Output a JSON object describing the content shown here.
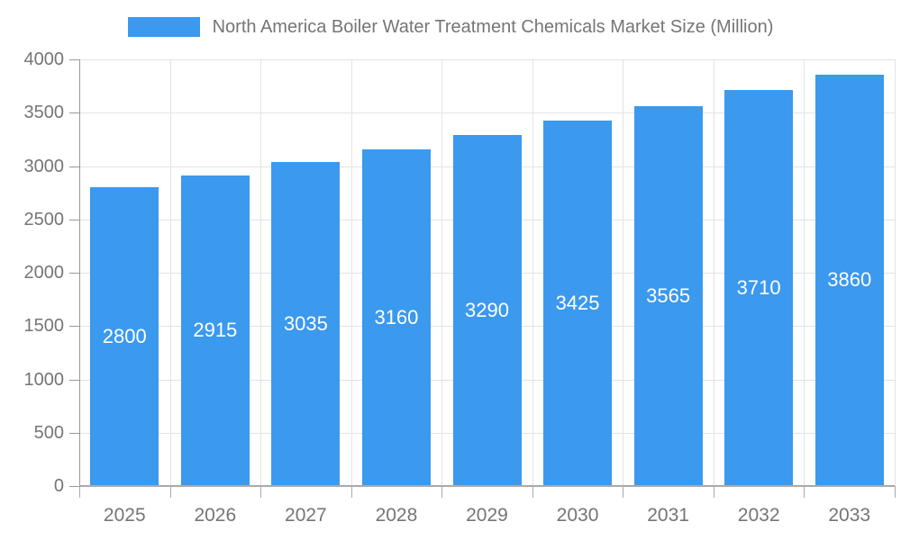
{
  "chart_data": {
    "type": "bar",
    "title": "North America Boiler Water Treatment Chemicals Market Size (Million)",
    "categories": [
      "2025",
      "2026",
      "2027",
      "2028",
      "2029",
      "2030",
      "2031",
      "2032",
      "2033"
    ],
    "values": [
      2800,
      2915,
      3035,
      3160,
      3290,
      3425,
      3565,
      3710,
      3860
    ],
    "xlabel": "",
    "ylabel": "",
    "ylim": [
      0,
      4000
    ],
    "y_ticks": [
      0,
      500,
      1000,
      1500,
      2000,
      2500,
      3000,
      3500,
      4000
    ],
    "grid": "horizontal and vertical light gridlines",
    "legend_position": "top-center",
    "value_labels": "white, centered inside bars",
    "colors": {
      "bar": "#3B99EE",
      "grid": "#E3E3E3",
      "axis": "#999999",
      "text": "#757575",
      "value_label": "#FFFFFF",
      "background": "#FFFFFF"
    }
  }
}
